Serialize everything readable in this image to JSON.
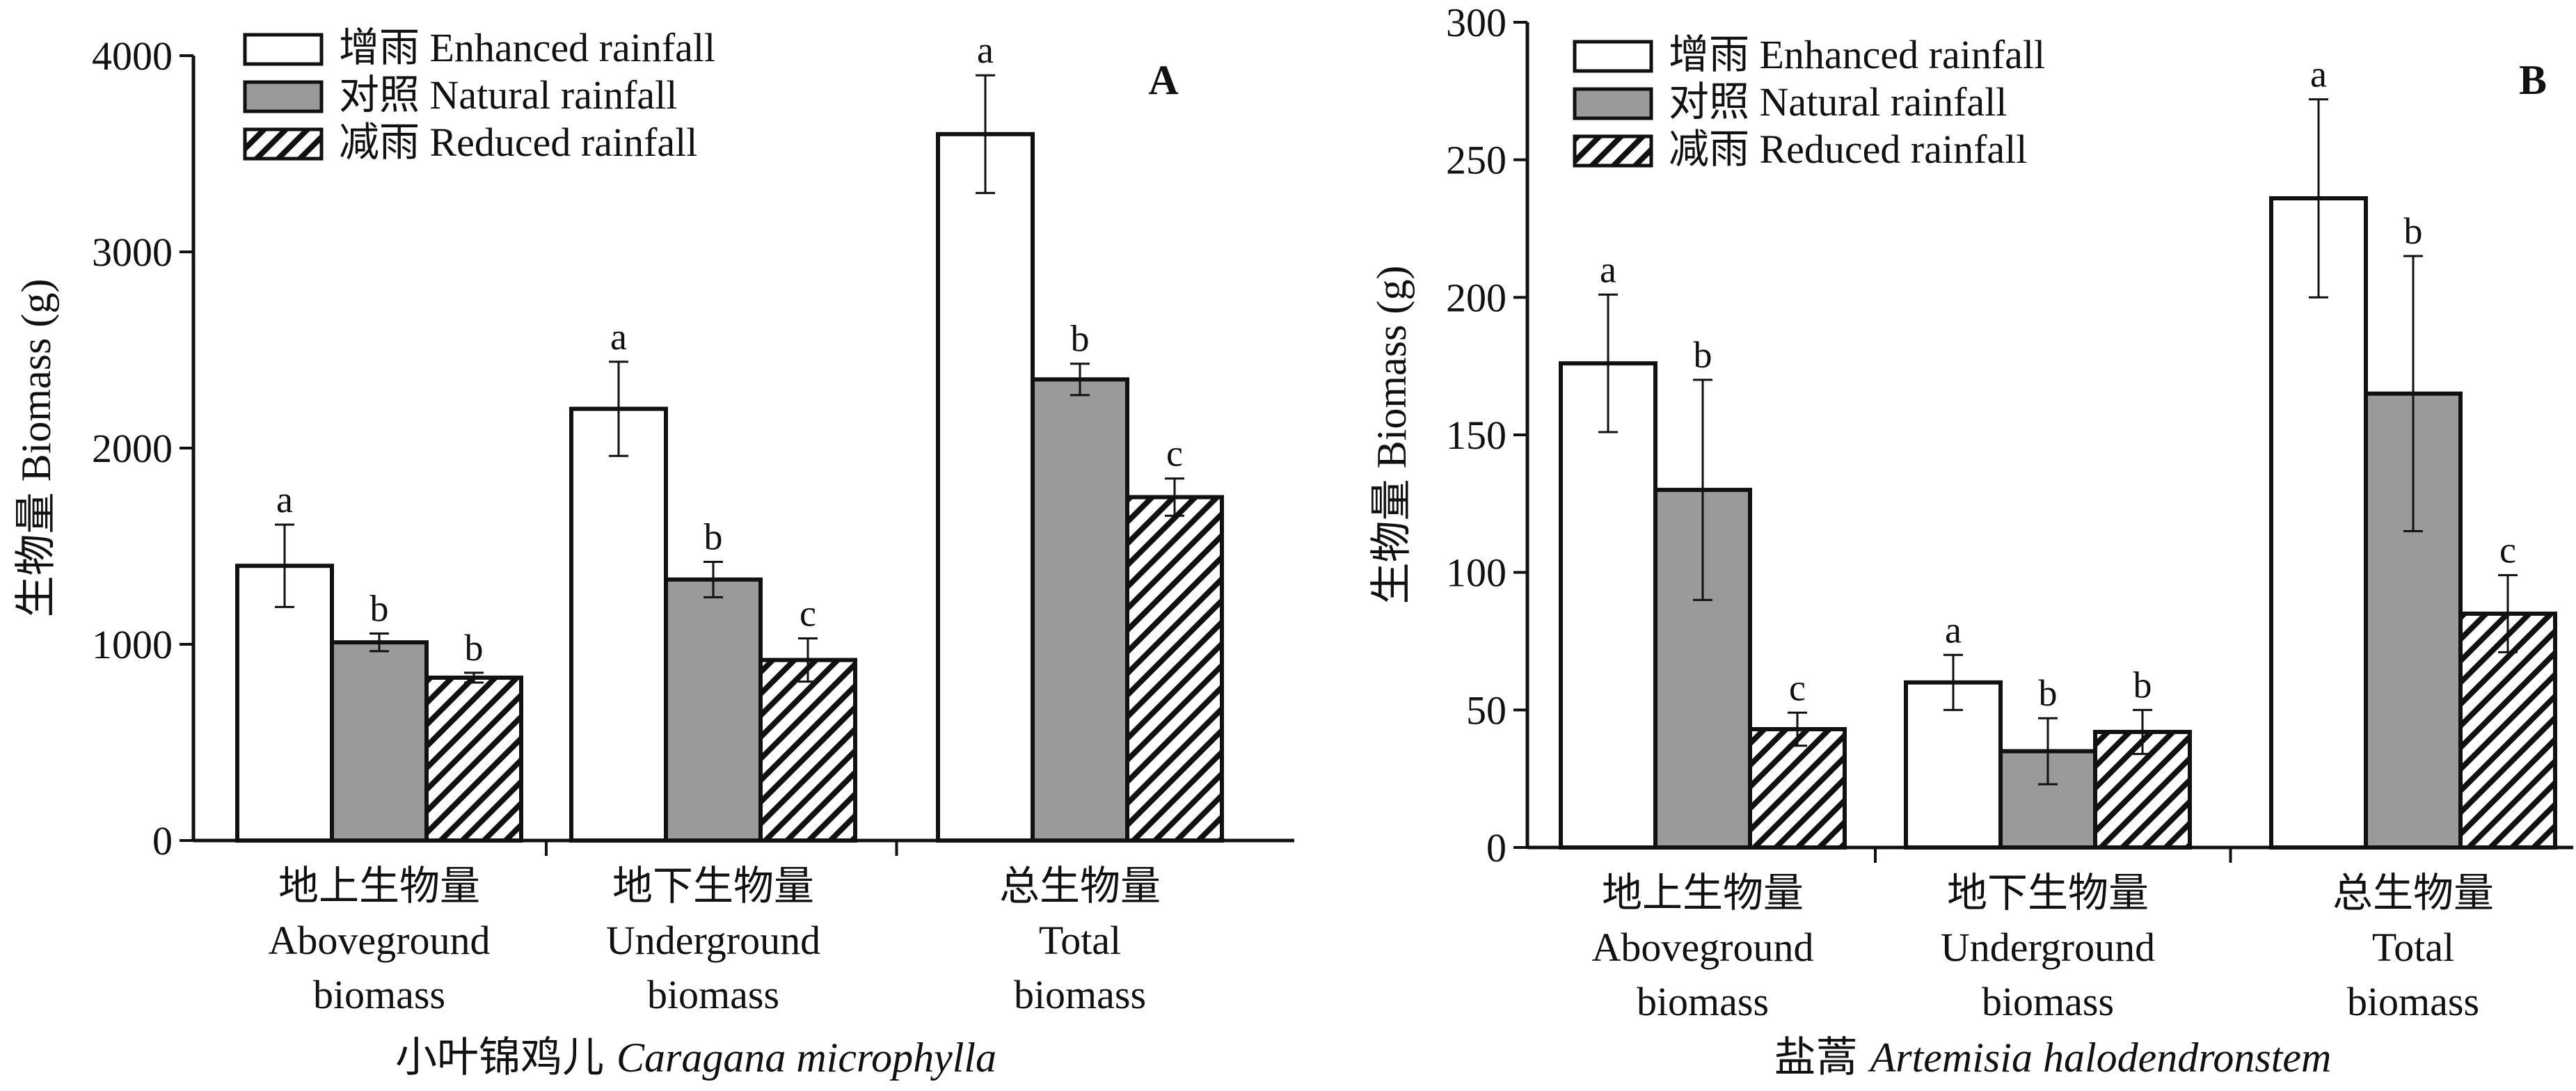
{
  "colors": {
    "enhanced": "#ffffff",
    "natural": "#9a9a9a",
    "reduced_stripe": "#111111",
    "axis": "#111111"
  },
  "legend_labels": [
    "增雨 Enhanced rainfall",
    "对照 Natural rainfall",
    "减雨 Reduced rainfall"
  ],
  "chart_data": [
    {
      "type": "bar",
      "panel_letter": "A",
      "ylabel": "生物量 Biomass (g)",
      "ylim": [
        0,
        4000
      ],
      "yticks": [
        0,
        1000,
        2000,
        3000,
        4000
      ],
      "categories": [
        [
          "地上生物量",
          "Aboveground",
          "biomass"
        ],
        [
          "地下生物量",
          "Underground",
          "biomass"
        ],
        [
          "总生物量",
          "Total",
          "biomass"
        ]
      ],
      "caption_cn": "小叶锦鸡儿",
      "caption_latin": "Caragana microphylla",
      "legend_position": "top-left",
      "series": [
        {
          "name": "增雨 Enhanced rainfall",
          "values": [
            1400,
            2200,
            3600
          ],
          "errors": [
            210,
            240,
            300
          ],
          "letters": [
            "a",
            "a",
            "a"
          ]
        },
        {
          "name": "对照 Natural rainfall",
          "values": [
            1010,
            1330,
            2350
          ],
          "errors": [
            45,
            90,
            80
          ],
          "letters": [
            "b",
            "b",
            "b"
          ]
        },
        {
          "name": "减雨 Reduced rainfall",
          "values": [
            830,
            920,
            1750
          ],
          "errors": [
            25,
            110,
            95
          ],
          "letters": [
            "b",
            "c",
            "c"
          ]
        }
      ]
    },
    {
      "type": "bar",
      "panel_letter": "B",
      "ylabel": "生物量 Biomass (g)",
      "ylim": [
        0,
        300
      ],
      "yticks": [
        0,
        50,
        100,
        150,
        200,
        250,
        300
      ],
      "categories": [
        [
          "地上生物量",
          "Aboveground",
          "biomass"
        ],
        [
          "地下生物量",
          "Underground",
          "biomass"
        ],
        [
          "总生物量",
          "Total",
          "biomass"
        ]
      ],
      "caption_cn": "盐蒿",
      "caption_latin": "Artemisia halodendronstem",
      "legend_position": "top-left",
      "series": [
        {
          "name": "增雨 Enhanced rainfall",
          "values": [
            176,
            60,
            236
          ],
          "errors": [
            25,
            10,
            36
          ],
          "letters": [
            "a",
            "a",
            "a"
          ]
        },
        {
          "name": "对照 Natural rainfall",
          "values": [
            130,
            35,
            165
          ],
          "errors": [
            40,
            12,
            50
          ],
          "letters": [
            "b",
            "b",
            "b"
          ]
        },
        {
          "name": "减雨 Reduced rainfall",
          "values": [
            43,
            42,
            85
          ],
          "errors": [
            6,
            8,
            14
          ],
          "letters": [
            "c",
            "b",
            "c"
          ]
        }
      ]
    }
  ]
}
